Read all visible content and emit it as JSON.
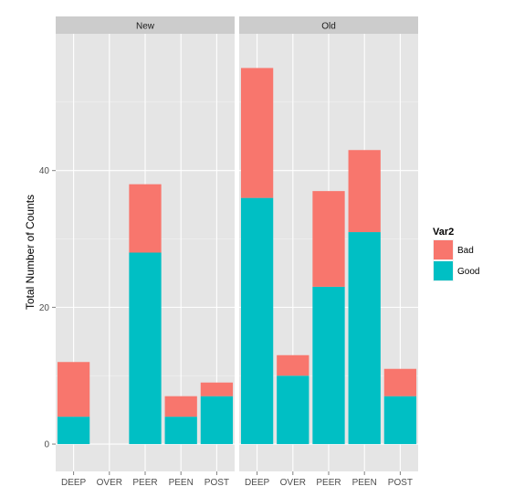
{
  "chart_data": {
    "type": "bar",
    "stacked": true,
    "facet_layout": "two panels side by side",
    "ylabel": "Total Number of Counts",
    "ylim": [
      -4,
      60
    ],
    "yticks": [
      0,
      20,
      40
    ],
    "grid": true,
    "legend": {
      "title": "Var2",
      "placement": "right"
    },
    "categories": [
      "DEEP",
      "OVER",
      "PEER",
      "PEEN",
      "POST"
    ],
    "series_colors": {
      "Bad": "#F8766D",
      "Good": "#00BFC4"
    },
    "panels": [
      {
        "label": "New",
        "series": [
          {
            "name": "Good",
            "values": [
              4,
              0,
              28,
              4,
              7
            ]
          },
          {
            "name": "Bad",
            "values": [
              8,
              0,
              10,
              3,
              2
            ]
          }
        ]
      },
      {
        "label": "Old",
        "series": [
          {
            "name": "Good",
            "values": [
              36,
              10,
              23,
              31,
              7
            ]
          },
          {
            "name": "Bad",
            "values": [
              19,
              3,
              14,
              12,
              4
            ]
          }
        ]
      }
    ]
  }
}
